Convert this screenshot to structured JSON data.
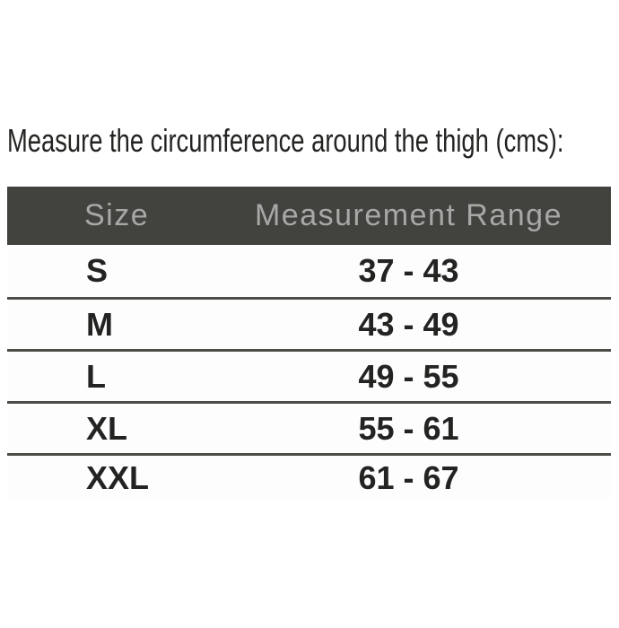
{
  "title": "Measure the circumference around the thigh (cms):",
  "table": {
    "columns": [
      "Size",
      "Measurement Range"
    ],
    "rows": [
      {
        "size": "S",
        "range": "37 - 43"
      },
      {
        "size": "M",
        "range": "43 - 49"
      },
      {
        "size": "L",
        "range": "49 - 55"
      },
      {
        "size": "XL",
        "range": "55 - 61"
      },
      {
        "size": "XXL",
        "range": "61 - 67"
      }
    ]
  },
  "colors": {
    "header_bg": "#42423e",
    "header_text": "#a8a8a6",
    "divider": "#4c4c48",
    "body_text": "#232322",
    "row_bg": "#fdfdfd",
    "page_bg": "#ffffff"
  },
  "chart_data": {
    "type": "table",
    "title": "Measure the circumference around the thigh (cms):",
    "columns": [
      "Size",
      "Measurement Range"
    ],
    "rows": [
      [
        "S",
        "37 - 43"
      ],
      [
        "M",
        "43 - 49"
      ],
      [
        "L",
        "49 - 55"
      ],
      [
        "XL",
        "55 - 61"
      ],
      [
        "XXL",
        "61 - 67"
      ]
    ],
    "measurement_unit": "cms"
  }
}
